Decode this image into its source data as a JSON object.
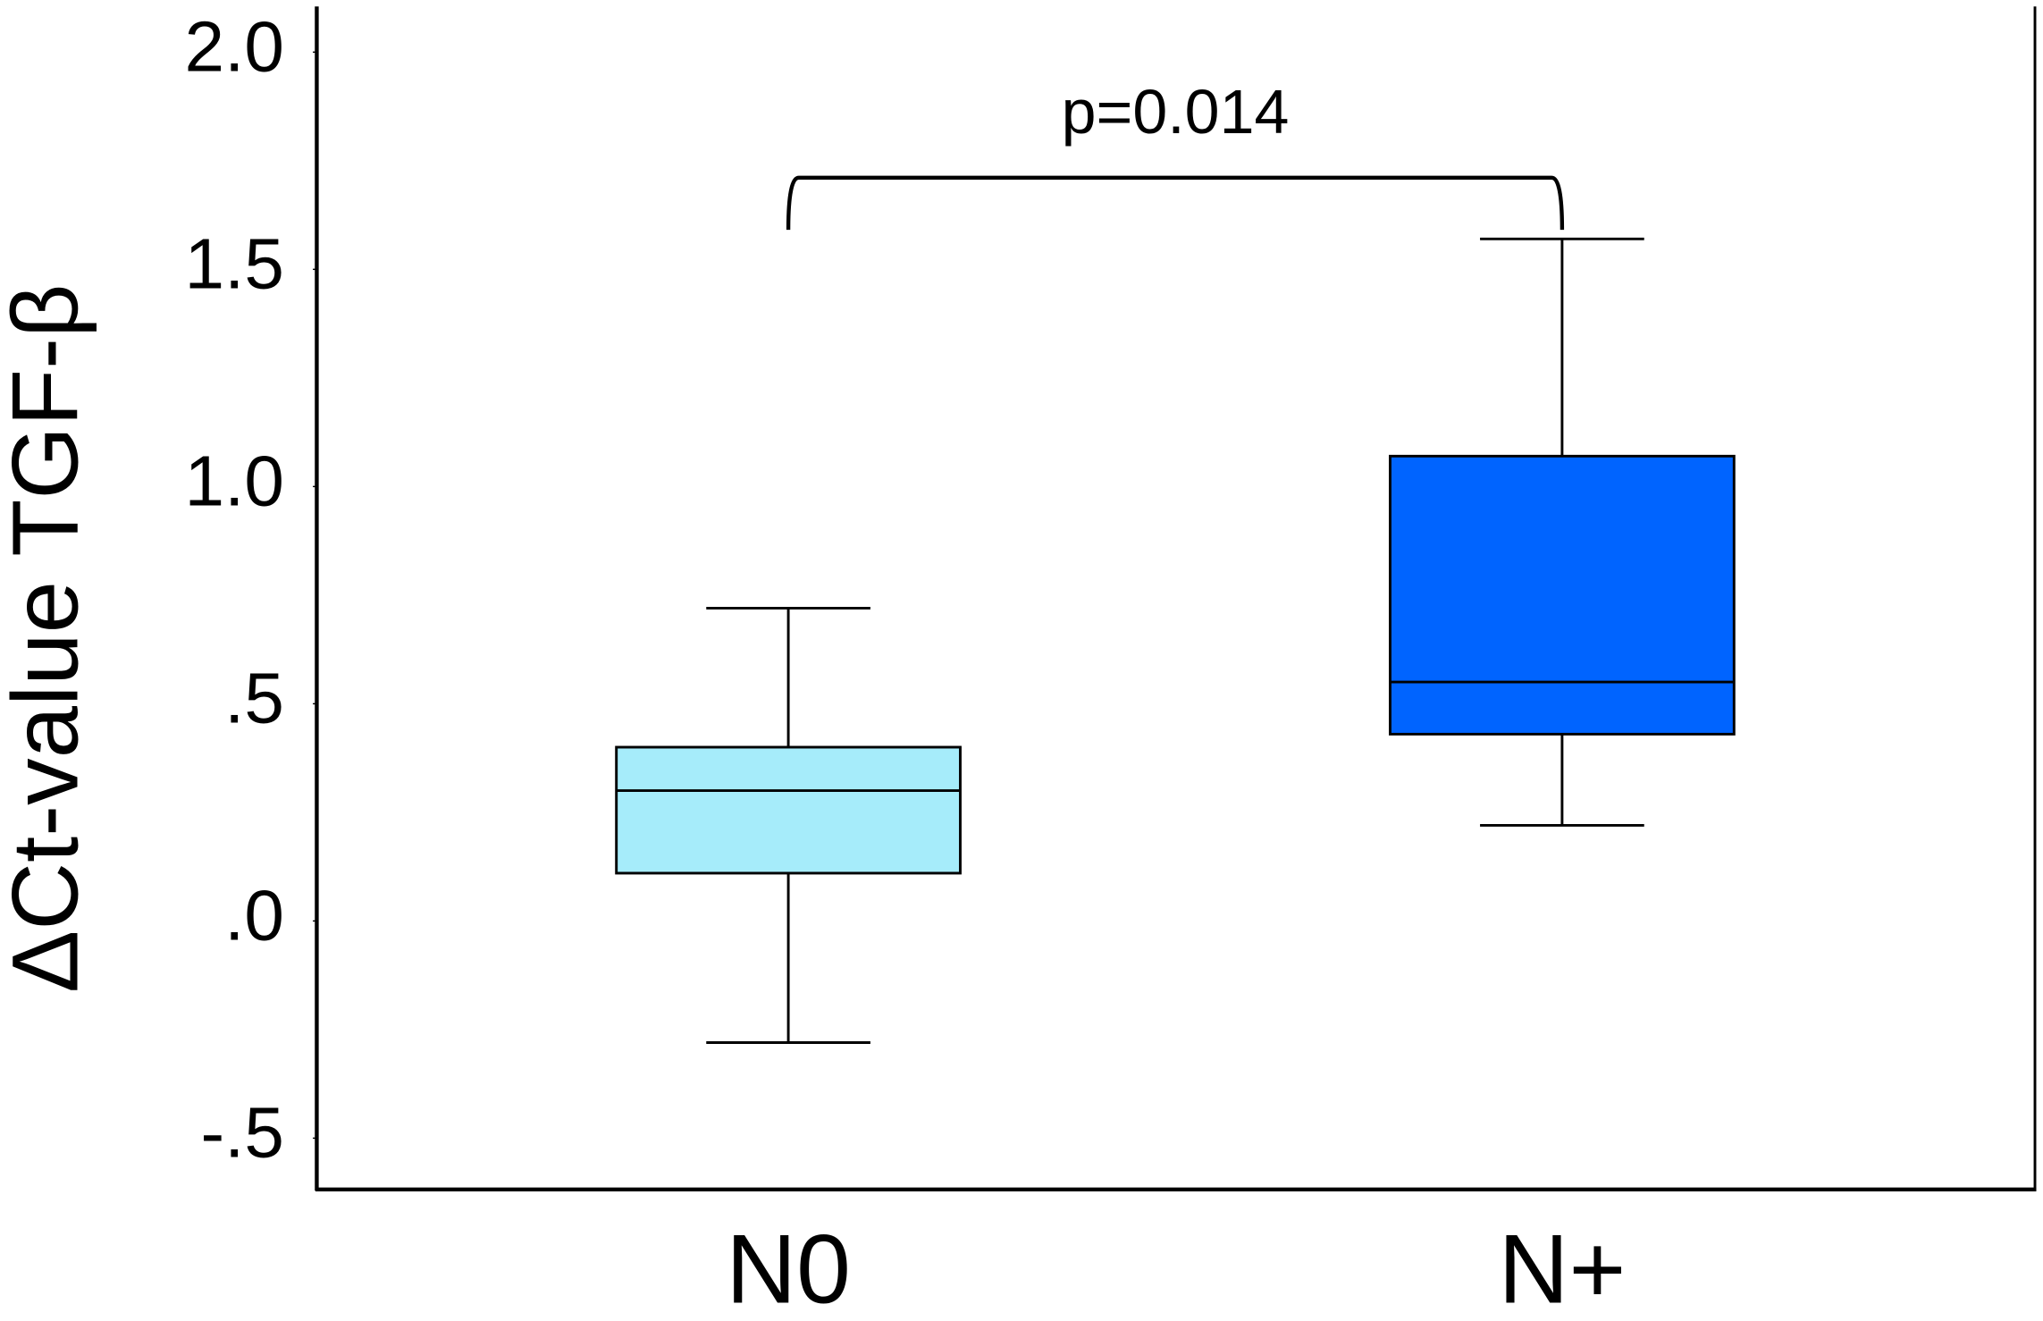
{
  "chart_data": {
    "type": "box",
    "y_label": "ΔCt-value TGF-β",
    "annotation": "p=0.014",
    "categories": [
      "N0",
      "N+"
    ],
    "boxes": [
      {
        "min": -0.28,
        "q1": 0.11,
        "median": 0.3,
        "q3": 0.4,
        "max": 0.72,
        "color": "#a6ecfa"
      },
      {
        "min": 0.22,
        "q1": 0.43,
        "median": 0.55,
        "q3": 1.07,
        "max": 1.57,
        "color": "#0064ff"
      }
    ],
    "ylim": [
      -0.618,
      2.105
    ],
    "yticks": [
      {
        "value": 2.0,
        "label": "2.0"
      },
      {
        "value": 1.5,
        "label": "1.5"
      },
      {
        "value": 1.0,
        "label": "1.0"
      },
      {
        "value": 0.5,
        "label": ".5"
      },
      {
        "value": 0.0,
        "label": ".0"
      },
      {
        "value": -0.5,
        "label": "-.5"
      }
    ]
  }
}
